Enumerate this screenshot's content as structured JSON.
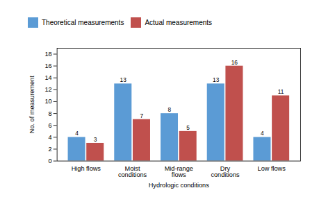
{
  "chart_data": {
    "type": "bar",
    "categories": [
      "High flows",
      "Moist\nconditions",
      "Mid-range\nflows",
      "Dry\nconditions",
      "Low flows"
    ],
    "series": [
      {
        "name": "Theoretical measurements",
        "color": "#5B9BD5",
        "values": [
          4,
          13,
          8,
          13,
          4
        ]
      },
      {
        "name": "Actual measurements",
        "color": "#C0504D",
        "values": [
          3,
          7,
          5,
          16,
          11
        ]
      }
    ],
    "xlabel": "Hydrologic conditions",
    "ylabel": "No. of measurement",
    "ylim": [
      0,
      19
    ],
    "yticks": [
      0,
      2,
      4,
      6,
      8,
      10,
      12,
      14,
      16,
      18
    ],
    "grid": false,
    "legend": "upper left",
    "data_labels": true
  }
}
